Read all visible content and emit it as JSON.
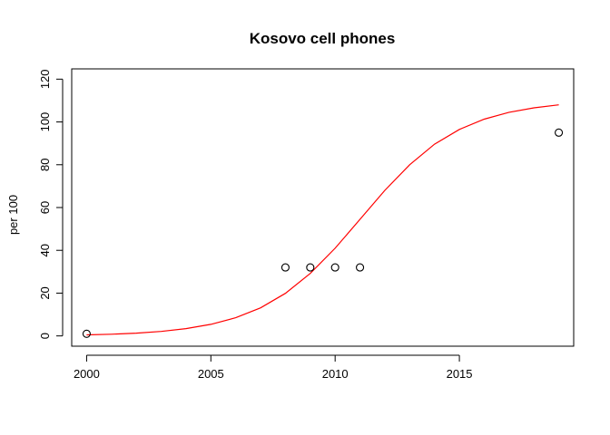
{
  "chart_data": {
    "type": "scatter",
    "title": "Kosovo cell phones",
    "xlabel": "",
    "ylabel": "per 100",
    "xlim": [
      1999.4,
      2019.6
    ],
    "ylim": [
      -4.8,
      124.8
    ],
    "x_ticks": [
      2000,
      2005,
      2010,
      2015
    ],
    "y_ticks": [
      0,
      20,
      40,
      60,
      80,
      100,
      120
    ],
    "grid": false,
    "legend": "none",
    "point_color": "#000000",
    "curve_color": "#ff0000",
    "points": {
      "x": [
        2000,
        2008,
        2009,
        2010,
        2011,
        2019
      ],
      "y": [
        1,
        32,
        32,
        32,
        32,
        95
      ]
    },
    "fitted_curve": {
      "x": [
        2000,
        2001,
        2002,
        2003,
        2004,
        2005,
        2006,
        2007,
        2008,
        2009,
        2010,
        2011,
        2012,
        2013,
        2014,
        2015,
        2016,
        2017,
        2018,
        2019
      ],
      "y": [
        0.5,
        0.8,
        1.3,
        2.1,
        3.4,
        5.4,
        8.5,
        13.1,
        19.9,
        29.2,
        41.0,
        54.5,
        68.0,
        80.0,
        89.6,
        96.5,
        101.3,
        104.5,
        106.6,
        108.0
      ]
    }
  }
}
